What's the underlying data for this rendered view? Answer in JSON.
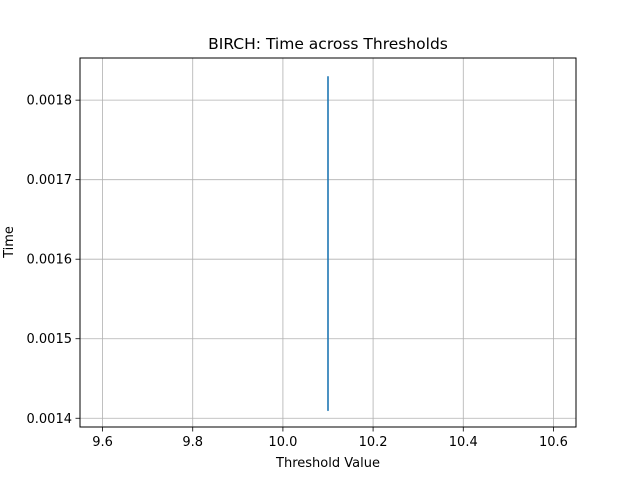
{
  "chart_data": {
    "type": "line",
    "title": "BIRCH: Time across Thresholds",
    "xlabel": "Threshold Value",
    "ylabel": "Time",
    "xlim": [
      9.55,
      10.65
    ],
    "ylim": [
      0.001389,
      0.001853
    ],
    "xticks": [
      9.6,
      9.8,
      10.0,
      10.2,
      10.4,
      10.6
    ],
    "xtick_labels": [
      "9.6",
      "9.8",
      "10.0",
      "10.2",
      "10.4",
      "10.6"
    ],
    "yticks": [
      0.0014,
      0.0015,
      0.0016,
      0.0017,
      0.0018
    ],
    "ytick_labels": [
      "0.0014",
      "0.0015",
      "0.0016",
      "0.0017",
      "0.0018"
    ],
    "grid": true,
    "series": [
      {
        "color": "#1f77b4",
        "x": [
          10.1,
          10.1,
          10.1,
          10.1,
          10.1
        ],
        "y": [
          0.00183,
          0.00141,
          0.00145,
          0.00144,
          0.00146
        ]
      }
    ]
  }
}
